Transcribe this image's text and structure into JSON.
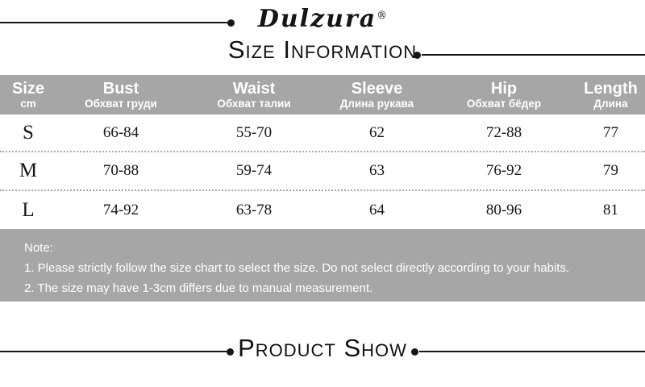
{
  "brand": {
    "name": "Dulzura",
    "trademark": "®"
  },
  "headings": {
    "size_information": "Size Information",
    "product_show": "Product Show"
  },
  "table": {
    "columns": [
      {
        "en": "Size",
        "ru": "cm"
      },
      {
        "en": "Bust",
        "ru": "Обхват груди"
      },
      {
        "en": "Waist",
        "ru": "Обхват талии"
      },
      {
        "en": "Sleeve",
        "ru": "Длина рукава"
      },
      {
        "en": "Hip",
        "ru": "Обхват бёдер"
      },
      {
        "en": "Length",
        "ru": "Длина"
      }
    ],
    "rows": [
      {
        "size": "S",
        "bust": "66-84",
        "waist": "55-70",
        "sleeve": "62",
        "hip": "72-88",
        "length": "77"
      },
      {
        "size": "M",
        "bust": "70-88",
        "waist": "59-74",
        "sleeve": "63",
        "hip": "76-92",
        "length": "79"
      },
      {
        "size": "L",
        "bust": "74-92",
        "waist": "63-78",
        "sleeve": "64",
        "hip": "80-96",
        "length": "81"
      }
    ]
  },
  "note": {
    "title": "Note:",
    "items": [
      "1. Please strictly follow the size chart to select the size. Do not select directly according to your habits.",
      "2. The size may have 1-3cm differs due to manual measurement."
    ]
  },
  "colors": {
    "band_gray": "#a6a6a6",
    "ink": "#151515",
    "text_on_band": "#ffffff"
  }
}
